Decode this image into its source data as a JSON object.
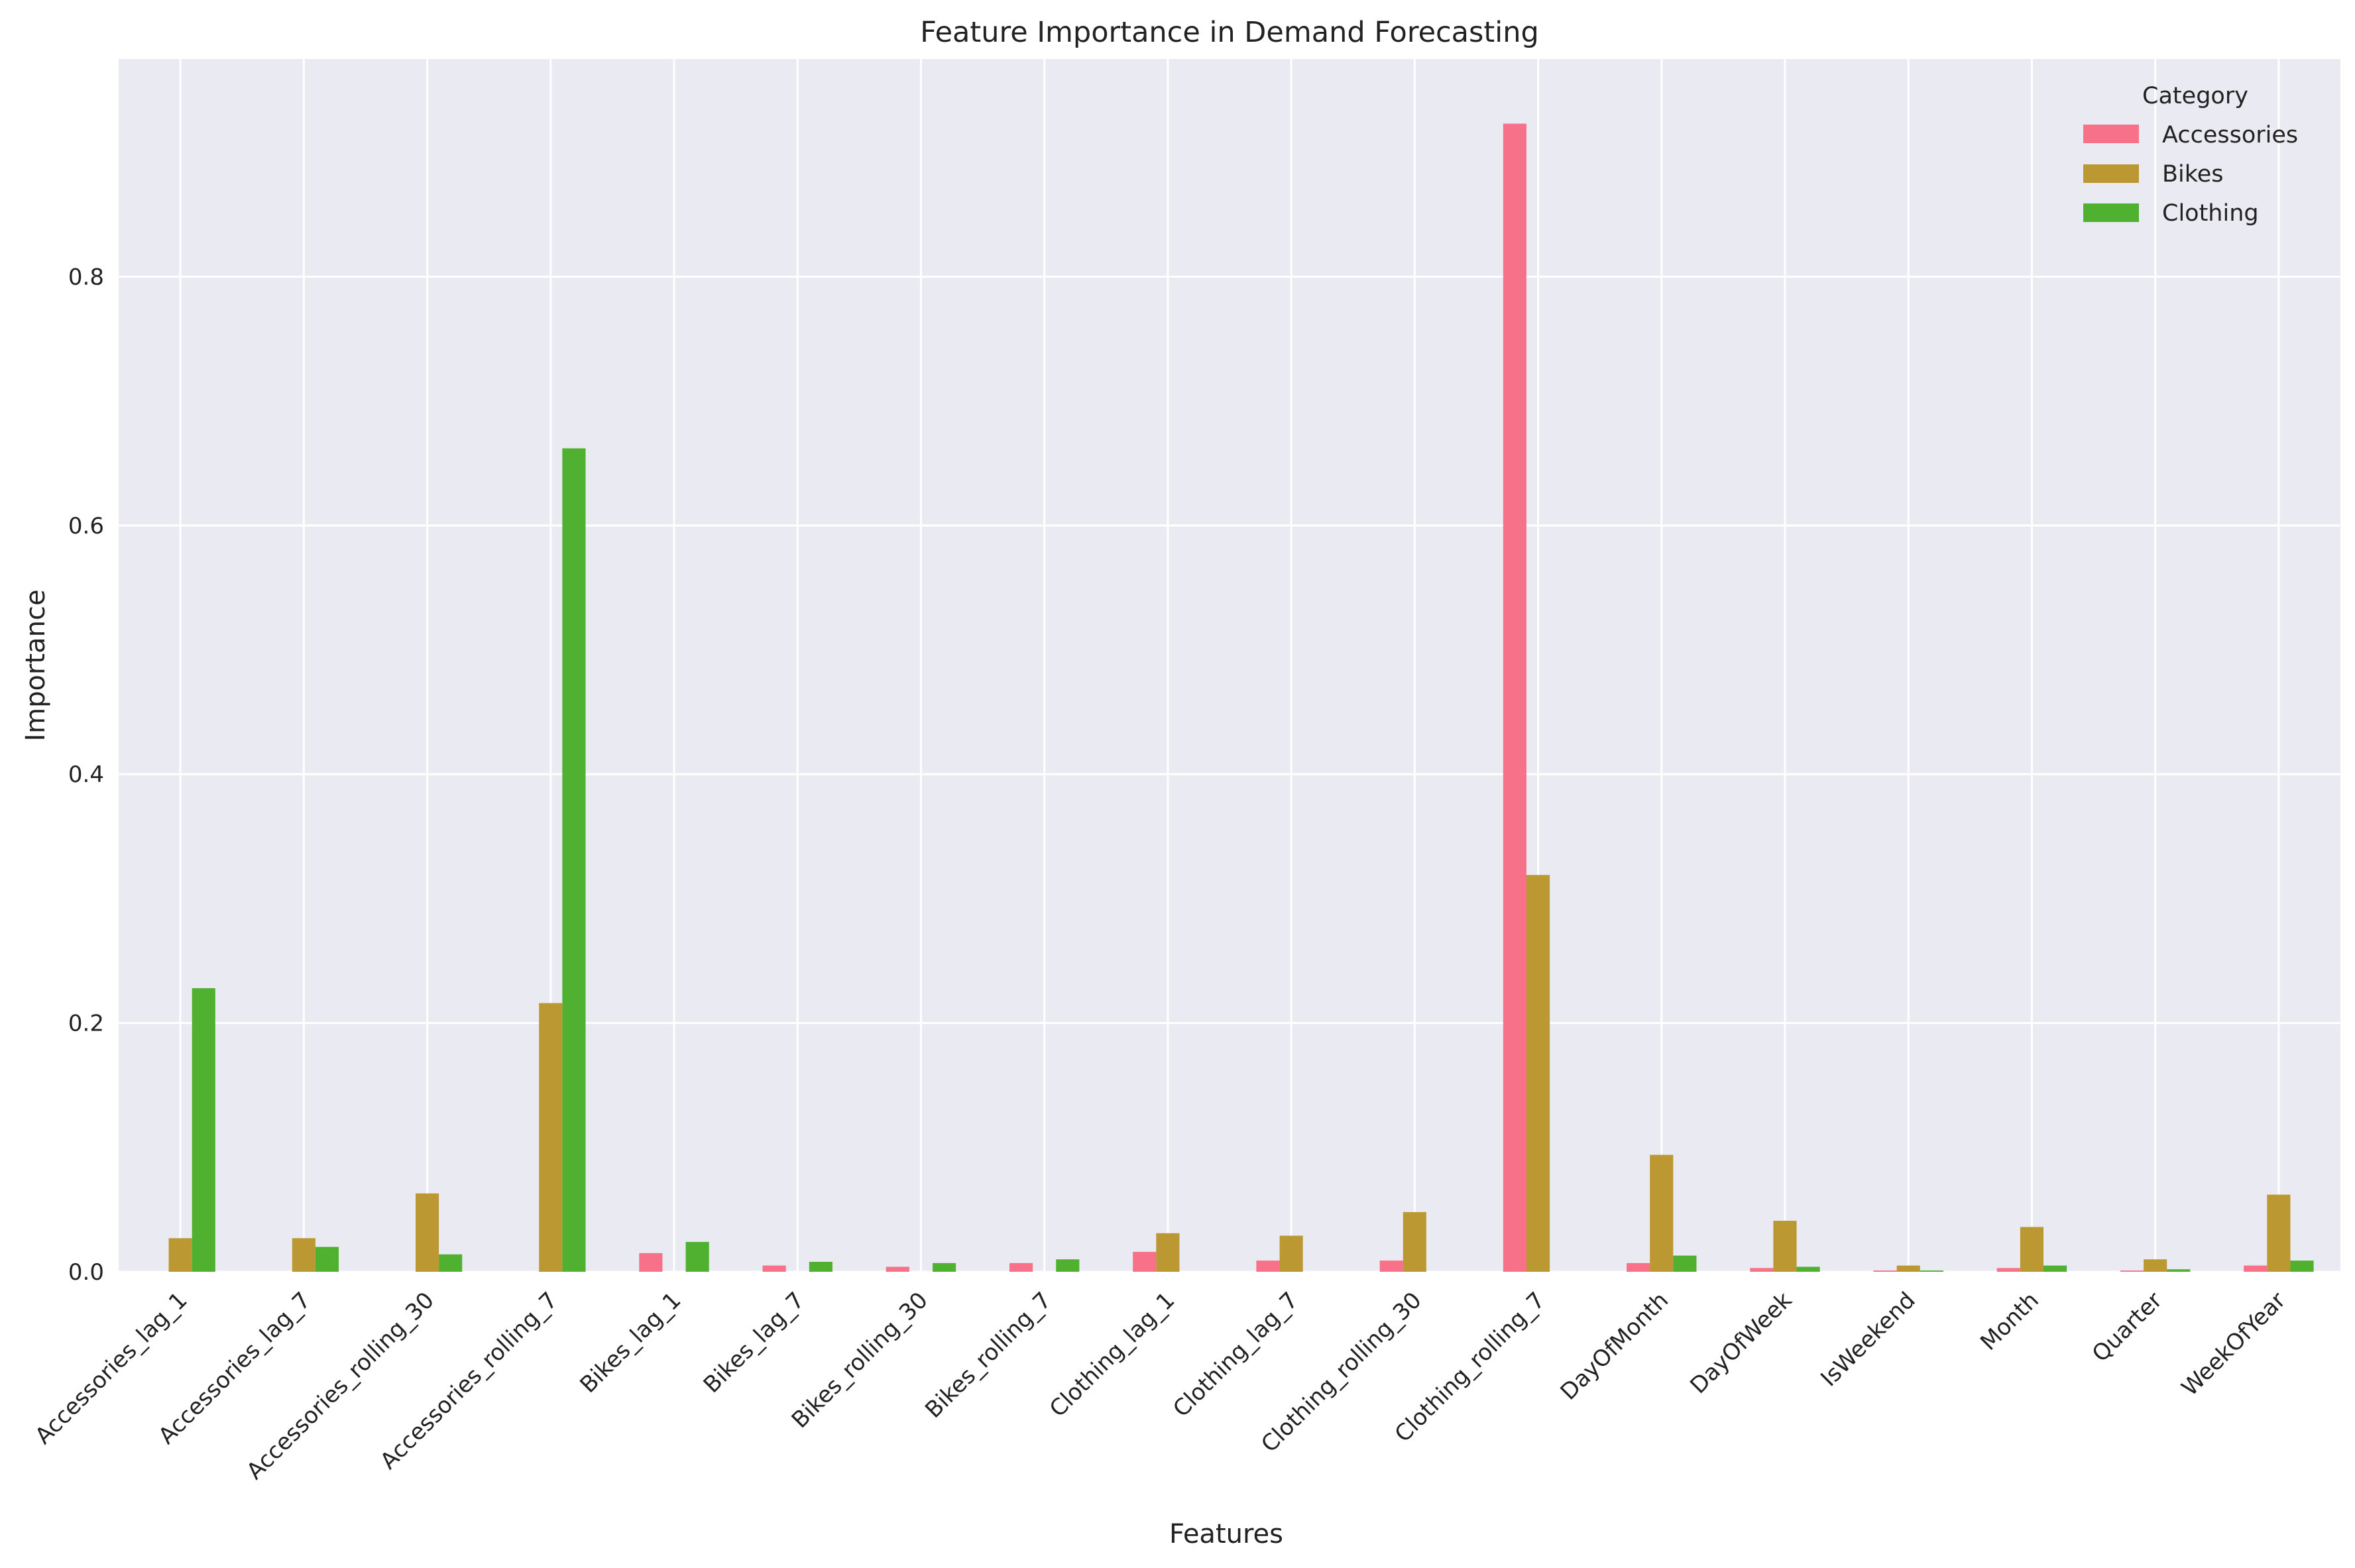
{
  "chart_data": {
    "type": "bar",
    "title": "Feature Importance in Demand Forecasting",
    "xlabel": "Features",
    "ylabel": "Importance",
    "ylim": [
      0,
      0.975
    ],
    "yticks": [
      0.0,
      0.2,
      0.4,
      0.6,
      0.8
    ],
    "ytick_labels": [
      "0.0",
      "0.2",
      "0.4",
      "0.6",
      "0.8"
    ],
    "grid": true,
    "legend": {
      "title": "Category",
      "position": "top-right"
    },
    "categories": [
      "Accessories_lag_1",
      "Accessories_lag_7",
      "Accessories_rolling_30",
      "Accessories_rolling_7",
      "Bikes_lag_1",
      "Bikes_lag_7",
      "Bikes_rolling_30",
      "Bikes_rolling_7",
      "Clothing_lag_1",
      "Clothing_lag_7",
      "Clothing_rolling_30",
      "Clothing_rolling_7",
      "DayOfMonth",
      "DayOfWeek",
      "IsWeekend",
      "Month",
      "Quarter",
      "WeekOfYear"
    ],
    "series": [
      {
        "name": "Accessories",
        "color": "#f77189",
        "values": [
          0,
          0,
          0,
          0,
          0.015,
          0.005,
          0.004,
          0.007,
          0.016,
          0.009,
          0.009,
          0.923,
          0.007,
          0.003,
          0.001,
          0.003,
          0.001,
          0.005
        ]
      },
      {
        "name": "Bikes",
        "color": "#bb9832",
        "values": [
          0.027,
          0.027,
          0.063,
          0.216,
          0,
          0,
          0,
          0,
          0.031,
          0.029,
          0.048,
          0.319,
          0.094,
          0.041,
          0.005,
          0.036,
          0.01,
          0.062
        ]
      },
      {
        "name": "Clothing",
        "color": "#50b131",
        "values": [
          0.228,
          0.02,
          0.014,
          0.662,
          0.024,
          0.008,
          0.007,
          0.01,
          0,
          0,
          0,
          0,
          0.013,
          0.004,
          0.001,
          0.005,
          0.002,
          0.009
        ]
      }
    ]
  }
}
